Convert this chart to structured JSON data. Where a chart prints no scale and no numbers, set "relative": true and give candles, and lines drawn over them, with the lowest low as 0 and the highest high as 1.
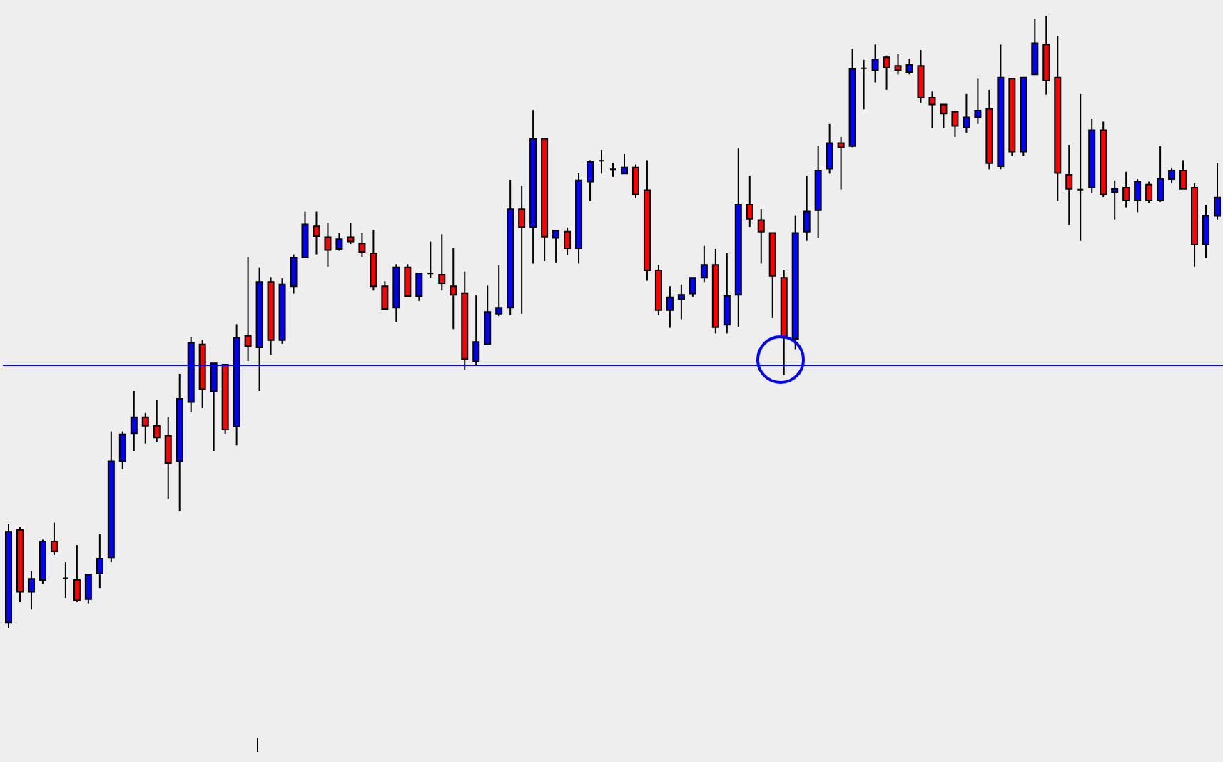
{
  "chart_data": {
    "type": "candlestick",
    "relative": true,
    "categories": [
      null,
      null,
      null,
      null,
      null,
      null,
      null,
      null,
      null,
      null,
      null,
      null,
      null,
      null,
      null,
      null,
      null,
      null,
      null,
      null,
      null,
      null,
      null,
      null,
      null,
      null,
      null,
      null,
      null,
      null,
      null,
      null,
      null,
      null,
      null,
      null,
      null,
      null,
      null,
      null,
      null,
      null,
      null,
      null,
      null,
      null,
      null,
      null,
      null,
      null,
      null,
      null,
      null,
      null,
      null,
      null,
      null,
      null,
      null,
      null,
      null,
      null,
      null,
      null,
      null,
      null,
      null,
      null,
      null,
      null,
      null,
      null,
      null,
      null,
      null,
      null,
      null,
      null,
      null,
      null,
      null,
      null,
      null,
      null,
      null,
      null,
      null,
      null,
      null,
      null,
      null,
      null,
      null,
      null,
      null,
      null,
      null,
      null,
      null,
      null,
      null,
      null,
      null,
      null,
      null,
      null,
      null
    ],
    "ohlc": [
      [
        0.009,
        0.17,
        0,
        0.157
      ],
      [
        0.16,
        0.165,
        0.042,
        0.059
      ],
      [
        0.059,
        0.093,
        0.03,
        0.08
      ],
      [
        0.078,
        0.144,
        0.072,
        0.141
      ],
      [
        0.141,
        0.172,
        0.119,
        0.125
      ],
      [
        0.081,
        0.107,
        0.049,
        0.081
      ],
      [
        0.078,
        0.135,
        0.042,
        0.045
      ],
      [
        0.047,
        0.087,
        0.04,
        0.087
      ],
      [
        0.089,
        0.153,
        0.065,
        0.113
      ],
      [
        0.115,
        0.321,
        0.107,
        0.272
      ],
      [
        0.272,
        0.321,
        0.259,
        0.316
      ],
      [
        0.318,
        0.387,
        0.289,
        0.344
      ],
      [
        0.344,
        0.351,
        0.301,
        0.33
      ],
      [
        0.33,
        0.373,
        0.303,
        0.311
      ],
      [
        0.314,
        0.344,
        0.21,
        0.269
      ],
      [
        0.272,
        0.415,
        0.191,
        0.374
      ],
      [
        0.369,
        0.475,
        0.352,
        0.466
      ],
      [
        0.463,
        0.47,
        0.359,
        0.39
      ],
      [
        0.387,
        0.432,
        0.289,
        0.432
      ],
      [
        0.43,
        0.43,
        0.317,
        0.324
      ],
      [
        0.329,
        0.496,
        0.298,
        0.474
      ],
      [
        0.477,
        0.606,
        0.436,
        0.46
      ],
      [
        0.458,
        0.589,
        0.387,
        0.565
      ],
      [
        0.565,
        0.573,
        0.446,
        0.47
      ],
      [
        0.47,
        0.571,
        0.464,
        0.561
      ],
      [
        0.558,
        0.61,
        0.546,
        0.605
      ],
      [
        0.605,
        0.68,
        0.604,
        0.659
      ],
      [
        0.656,
        0.68,
        0.61,
        0.64
      ],
      [
        0.638,
        0.662,
        0.59,
        0.617
      ],
      [
        0.619,
        0.645,
        0.616,
        0.635
      ],
      [
        0.638,
        0.662,
        0.627,
        0.631
      ],
      [
        0.628,
        0.645,
        0.606,
        0.614
      ],
      [
        0.612,
        0.65,
        0.551,
        0.558
      ],
      [
        0.558,
        0.566,
        0.521,
        0.521
      ],
      [
        0.523,
        0.594,
        0.5,
        0.589
      ],
      [
        0.589,
        0.594,
        0.542,
        0.542
      ],
      [
        0.542,
        0.579,
        0.534,
        0.579
      ],
      [
        0.579,
        0.631,
        0.572,
        0.579
      ],
      [
        0.577,
        0.643,
        0.551,
        0.563
      ],
      [
        0.558,
        0.62,
        0.488,
        0.544
      ],
      [
        0.547,
        0.582,
        0.422,
        0.439
      ],
      [
        0.436,
        0.543,
        0.429,
        0.467
      ],
      [
        0.464,
        0.559,
        0.462,
        0.516
      ],
      [
        0.513,
        0.592,
        0.509,
        0.523
      ],
      [
        0.523,
        0.732,
        0.511,
        0.684
      ],
      [
        0.684,
        0.722,
        0.513,
        0.655
      ],
      [
        0.655,
        0.846,
        0.595,
        0.799
      ],
      [
        0.799,
        0.799,
        0.599,
        0.639
      ],
      [
        0.637,
        0.649,
        0.597,
        0.649
      ],
      [
        0.647,
        0.654,
        0.609,
        0.62
      ],
      [
        0.62,
        0.743,
        0.595,
        0.731
      ],
      [
        0.729,
        0.764,
        0.697,
        0.761
      ],
      [
        0.763,
        0.781,
        0.742,
        0.763
      ],
      [
        0.749,
        0.76,
        0.737,
        0.749
      ],
      [
        0.742,
        0.774,
        0.742,
        0.752
      ],
      [
        0.752,
        0.757,
        0.702,
        0.708
      ],
      [
        0.715,
        0.764,
        0.567,
        0.584
      ],
      [
        0.584,
        0.593,
        0.511,
        0.519
      ],
      [
        0.519,
        0.558,
        0.49,
        0.54
      ],
      [
        0.537,
        0.561,
        0.504,
        0.544
      ],
      [
        0.546,
        0.572,
        0.541,
        0.572
      ],
      [
        0.572,
        0.624,
        0.565,
        0.593
      ],
      [
        0.593,
        0.619,
        0.481,
        0.491
      ],
      [
        0.495,
        0.612,
        0.481,
        0.542
      ],
      [
        0.544,
        0.783,
        0.492,
        0.691
      ],
      [
        0.691,
        0.739,
        0.655,
        0.668
      ],
      [
        0.666,
        0.684,
        0.595,
        0.647
      ],
      [
        0.645,
        0.645,
        0.506,
        0.575
      ],
      [
        0.572,
        0.584,
        0.413,
        0.474
      ],
      [
        0.472,
        0.673,
        0.455,
        0.645
      ],
      [
        0.647,
        0.739,
        0.632,
        0.68
      ],
      [
        0.682,
        0.788,
        0.637,
        0.747
      ],
      [
        0.75,
        0.823,
        0.742,
        0.792
      ],
      [
        0.792,
        0.802,
        0.716,
        0.785
      ],
      [
        0.787,
        0.946,
        0.785,
        0.913
      ],
      [
        0.914,
        0.928,
        0.847,
        0.914
      ],
      [
        0.911,
        0.953,
        0.891,
        0.929
      ],
      [
        0.932,
        0.935,
        0.879,
        0.915
      ],
      [
        0.918,
        0.937,
        0.904,
        0.911
      ],
      [
        0.908,
        0.93,
        0.904,
        0.92
      ],
      [
        0.918,
        0.944,
        0.858,
        0.866
      ],
      [
        0.866,
        0.876,
        0.816,
        0.855
      ],
      [
        0.855,
        0.855,
        0.816,
        0.84
      ],
      [
        0.843,
        0.845,
        0.802,
        0.82
      ],
      [
        0.817,
        0.872,
        0.809,
        0.834
      ],
      [
        0.834,
        0.897,
        0.823,
        0.845
      ],
      [
        0.848,
        0.879,
        0.749,
        0.759
      ],
      [
        0.754,
        0.953,
        0.749,
        0.899
      ],
      [
        0.897,
        0.897,
        0.771,
        0.778
      ],
      [
        0.778,
        0.899,
        0.771,
        0.899
      ],
      [
        0.904,
        0.995,
        0.904,
        0.955
      ],
      [
        0.953,
        1,
        0.871,
        0.894
      ],
      [
        0.899,
        0.967,
        0.697,
        0.743
      ],
      [
        0.74,
        0.789,
        0.658,
        0.717
      ],
      [
        0.716,
        0.872,
        0.632,
        0.716
      ],
      [
        0.719,
        0.831,
        0.71,
        0.813
      ],
      [
        0.813,
        0.827,
        0.704,
        0.708
      ],
      [
        0.712,
        0.731,
        0.667,
        0.717
      ],
      [
        0.719,
        0.745,
        0.687,
        0.698
      ],
      [
        0.698,
        0.733,
        0.679,
        0.729
      ],
      [
        0.724,
        0.729,
        0.694,
        0.698
      ],
      [
        0.698,
        0.787,
        0.696,
        0.733
      ],
      [
        0.733,
        0.752,
        0.726,
        0.747
      ],
      [
        0.747,
        0.764,
        0.717,
        0.717
      ],
      [
        0.719,
        0.726,
        0.59,
        0.626
      ],
      [
        0.626,
        0.691,
        0.604,
        0.673
      ],
      [
        0.673,
        0.759,
        0.667,
        0.703
      ]
    ],
    "colors": [
      "#0000ff",
      "#ff0000",
      "#0000ff",
      "#0000ff",
      "#ff0000",
      "#000000",
      "#ff0000",
      "#0000ff",
      "#0000ff",
      "#0000ff",
      "#0000ff",
      "#0000ff",
      "#ff0000",
      "#ff0000",
      "#ff0000",
      "#0000ff",
      "#0000ff",
      "#ff0000",
      "#0000ff",
      "#ff0000",
      "#0000ff",
      "#ff0000",
      "#0000ff",
      "#ff0000",
      "#0000ff",
      "#0000ff",
      "#0000ff",
      "#ff0000",
      "#ff0000",
      "#0000ff",
      "#ff0000",
      "#ff0000",
      "#ff0000",
      "#ff0000",
      "#0000ff",
      "#ff0000",
      "#0000ff",
      "#000000",
      "#ff0000",
      "#ff0000",
      "#ff0000",
      "#0000ff",
      "#0000ff",
      "#0000ff",
      "#0000ff",
      "#ff0000",
      "#0000ff",
      "#ff0000",
      "#0000ff",
      "#ff0000",
      "#0000ff",
      "#0000ff",
      "#000000",
      "#000000",
      "#0000ff",
      "#ff0000",
      "#ff0000",
      "#ff0000",
      "#0000ff",
      "#0000ff",
      "#0000ff",
      "#0000ff",
      "#ff0000",
      "#0000ff",
      "#0000ff",
      "#ff0000",
      "#ff0000",
      "#ff0000",
      "#ff0000",
      "#0000ff",
      "#0000ff",
      "#0000ff",
      "#0000ff",
      "#ff0000",
      "#0000ff",
      "#000000",
      "#0000ff",
      "#ff0000",
      "#ff0000",
      "#0000ff",
      "#ff0000",
      "#ff0000",
      "#ff0000",
      "#ff0000",
      "#0000ff",
      "#0000ff",
      "#ff0000",
      "#0000ff",
      "#ff0000",
      "#0000ff",
      "#0000ff",
      "#ff0000",
      "#ff0000",
      "#ff0000",
      "#000000",
      "#0000ff",
      "#ff0000",
      "#0000ff",
      "#ff0000",
      "#0000ff",
      "#ff0000",
      "#0000ff",
      "#0000ff",
      "#ff0000",
      "#ff0000",
      "#0000ff",
      "#0000ff"
    ],
    "ref_lines": [
      {
        "axis": "y",
        "value": 0.429,
        "color": "#0000ff"
      }
    ]
  }
}
